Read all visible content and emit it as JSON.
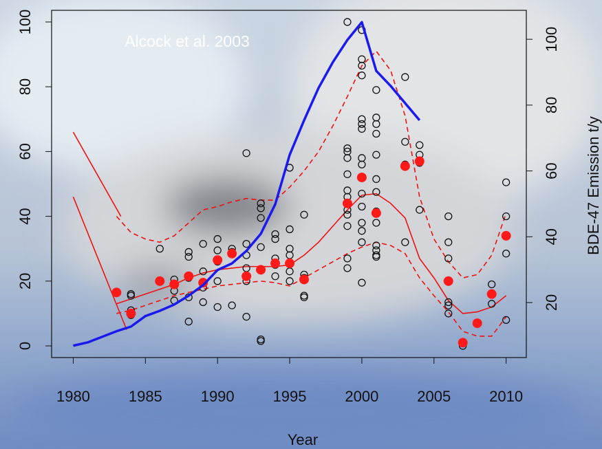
{
  "chart_data": {
    "type": "scatter",
    "annotation": "Alcock et al. 2003",
    "x_label": "Year",
    "y2_label": "BDE-47 Emission t/y",
    "xlim": [
      1978.5,
      2011.4
    ],
    "xticks": [
      1980,
      1985,
      1990,
      1995,
      2000,
      2005,
      2010
    ],
    "ylim": [
      -3.6,
      103.6
    ],
    "yticks": [
      0,
      20,
      40,
      60,
      80,
      100
    ],
    "y2lim": [
      3.3,
      108.8
    ],
    "y2ticks": [
      20,
      40,
      60,
      80,
      100
    ],
    "series": [
      {
        "type": "line",
        "color": "#ee1111",
        "dash": true,
        "x": [
          1983,
          1984,
          1985,
          1986,
          1987,
          1988,
          1989,
          1990,
          1991,
          1992,
          1993,
          1994,
          1995,
          1996,
          1997,
          1998,
          1999,
          2000,
          2001,
          2002,
          2003,
          2004,
          2005,
          2006,
          2007,
          2008,
          2009,
          2010
        ],
        "values": [
          40,
          35,
          33,
          32,
          34,
          38,
          42,
          43,
          44.5,
          45.5,
          45,
          45,
          49,
          54,
          60,
          68,
          77,
          86.5,
          91,
          85,
          71,
          46,
          33,
          26,
          21,
          22,
          28,
          41
        ]
      },
      {
        "type": "line",
        "color": "#ee1111",
        "dash": true,
        "x": [
          1983,
          1984,
          1985,
          1986,
          1987,
          1988,
          1989,
          1990,
          1991,
          1992,
          1993,
          1994,
          1995,
          1996,
          1997,
          1998,
          1999,
          2000,
          2001,
          2002,
          2003,
          2004,
          2005,
          2006,
          2007,
          2008,
          2009,
          2010
        ],
        "values": [
          10,
          11,
          12.5,
          14,
          15.5,
          16.5,
          17.5,
          18.5,
          19,
          19.5,
          20,
          19.5,
          18.5,
          21,
          23.5,
          26,
          28.5,
          30.5,
          32,
          31,
          28.5,
          21,
          15.5,
          10.5,
          4.5,
          3,
          3,
          9
        ]
      },
      {
        "type": "line",
        "color": "#ee1111",
        "dash": false,
        "x": [
          1983,
          1984,
          1985,
          1986,
          1987,
          1988,
          1989,
          1990,
          1991,
          1992,
          1993,
          1994,
          1995,
          1996,
          1997,
          1998,
          1999,
          2000,
          2001,
          2002,
          2003,
          2004,
          2005,
          2006,
          2007,
          2008,
          2009,
          2010
        ],
        "values": [
          13,
          14.5,
          16,
          17.5,
          19,
          21,
          22.5,
          23.5,
          24,
          24.5,
          24.5,
          24.5,
          25,
          28,
          32,
          37,
          42,
          46.5,
          47,
          44,
          39.5,
          27,
          21,
          14,
          10,
          10.5,
          12,
          15.5
        ]
      },
      {
        "type": "line",
        "color": "#ee1111",
        "dash": false,
        "x": [
          1980,
          1983.3
        ],
        "values": [
          66,
          40
        ]
      },
      {
        "type": "line",
        "color": "#ee1111",
        "dash": false,
        "x": [
          1980,
          1983.7
        ],
        "values": [
          46,
          5
        ]
      },
      {
        "type": "scatter",
        "color": "#111111",
        "filled": false,
        "x": [
          1984,
          1984,
          1984,
          1984,
          1986,
          1986,
          1987,
          1987,
          1987,
          1987,
          1988,
          1988,
          1988,
          1988,
          1988,
          1989,
          1989,
          1989,
          1989,
          1990,
          1990,
          1990,
          1990,
          1990,
          1991,
          1991,
          1991,
          1992,
          1992,
          1992,
          1992,
          1992,
          1992,
          1993,
          1993,
          1993,
          1993,
          1993,
          1993,
          1993,
          1994,
          1994,
          1994,
          1994,
          1994,
          1995,
          1995,
          1995,
          1995,
          1995,
          1995,
          1996,
          1996,
          1996,
          1996,
          1996,
          1999,
          1999,
          1999,
          1999,
          1999,
          1999,
          1999,
          1999,
          1999,
          1999,
          1999,
          1999,
          2000,
          2000,
          2000,
          2000,
          2000,
          2000,
          2000,
          2000,
          2000,
          2000,
          2000,
          2000,
          2000,
          2000,
          2000,
          2000,
          2001,
          2001,
          2001,
          2001,
          2001,
          2001,
          2001,
          2001,
          2001,
          2001,
          2001,
          2001,
          2001,
          2003,
          2003,
          2003,
          2003,
          2004,
          2004,
          2004,
          2004,
          2006,
          2006,
          2006,
          2006,
          2006,
          2006,
          2007,
          2007,
          2009,
          2009,
          2010,
          2010,
          2010,
          2010
        ],
        "values": [
          16,
          15.5,
          11,
          9.5,
          30,
          20,
          20.5,
          19,
          17,
          14,
          29,
          27.5,
          21,
          15,
          7.5,
          31.5,
          23,
          18,
          13.5,
          33,
          29.5,
          26,
          20,
          12,
          30,
          29,
          12.5,
          59.5,
          31.5,
          28,
          24,
          20,
          9,
          44,
          42.5,
          39.5,
          30.5,
          23.5,
          2,
          1.5,
          34.5,
          33,
          27,
          25,
          21.5,
          55,
          36,
          30,
          28,
          23,
          20,
          40.5,
          22,
          21,
          15.5,
          15,
          100,
          61,
          60,
          58,
          53,
          48,
          46,
          42,
          40.5,
          37,
          27,
          24,
          97.5,
          88.5,
          86.5,
          83.5,
          70,
          68.5,
          67,
          58,
          56,
          52,
          47,
          43,
          38,
          35.5,
          32,
          19.5,
          79,
          70.5,
          68.5,
          65.5,
          59,
          51.5,
          47.5,
          41.5,
          38,
          31,
          29.5,
          28,
          27.5,
          83,
          63,
          56,
          32,
          62,
          59,
          56.5,
          42,
          40,
          32,
          27,
          13.5,
          12.5,
          10,
          1,
          0,
          19,
          13,
          50.5,
          40,
          28.5,
          8
        ]
      },
      {
        "type": "scatter",
        "color": "#ff1a1a",
        "filled": true,
        "x": [
          1983,
          1984,
          1986,
          1987,
          1988,
          1989,
          1990,
          1991,
          1992,
          1993,
          1994,
          1995,
          1996,
          1999,
          2000,
          2001,
          2003,
          2004,
          2006,
          2007,
          2008,
          2009,
          2010
        ],
        "values": [
          16.5,
          10,
          20,
          19,
          21.5,
          19.5,
          26.5,
          28.5,
          21.5,
          23.5,
          25.5,
          25.5,
          20.5,
          44,
          52,
          41,
          55.5,
          57,
          20,
          1,
          7,
          16,
          34
        ]
      },
      {
        "type": "line",
        "color": "#1a1aee",
        "dash": false,
        "width": 3.5,
        "axis": "y2",
        "x": [
          1980,
          1981,
          1982,
          1983,
          1984,
          1985,
          1986,
          1987,
          1988,
          1989,
          1990,
          1991,
          1992,
          1993,
          1994,
          1995,
          1996,
          1997,
          1998,
          1999,
          2000,
          2001,
          2002,
          2003,
          2004
        ],
        "values": [
          6.9,
          7.9,
          9.6,
          11.3,
          12.7,
          15.9,
          17.5,
          19.4,
          22.1,
          25.3,
          29.9,
          31.9,
          35.7,
          40.9,
          49.9,
          64.9,
          75.4,
          85.2,
          93.1,
          99.8,
          105.2,
          90.4,
          85.8,
          80.6,
          75.4
        ]
      }
    ]
  }
}
